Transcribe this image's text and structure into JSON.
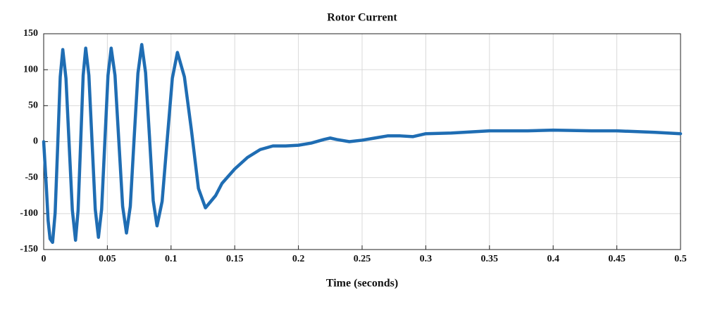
{
  "chart_data": {
    "type": "line",
    "title": "Rotor Current",
    "xlabel": "Time (seconds)",
    "color": "#1f6db3",
    "grid": true,
    "xlim": [
      0,
      0.5
    ],
    "ylim": [
      -150,
      150
    ],
    "xticks": [
      0,
      0.05,
      0.1,
      0.15,
      0.2,
      0.25,
      0.3,
      0.35,
      0.4,
      0.45,
      0.5
    ],
    "yticks": [
      -150,
      -100,
      -50,
      0,
      50,
      100,
      150
    ],
    "x": [
      0,
      0.002,
      0.0035,
      0.005,
      0.007,
      0.009,
      0.011,
      0.013,
      0.015,
      0.0175,
      0.02,
      0.0225,
      0.025,
      0.027,
      0.029,
      0.031,
      0.033,
      0.0355,
      0.038,
      0.0405,
      0.043,
      0.0455,
      0.048,
      0.0505,
      0.053,
      0.056,
      0.059,
      0.062,
      0.065,
      0.068,
      0.071,
      0.074,
      0.077,
      0.08,
      0.083,
      0.086,
      0.089,
      0.093,
      0.097,
      0.101,
      0.105,
      0.1105,
      0.116,
      0.1215,
      0.127,
      0.135,
      0.14,
      0.15,
      0.16,
      0.17,
      0.18,
      0.19,
      0.2,
      0.21,
      0.22,
      0.225,
      0.23,
      0.24,
      0.25,
      0.26,
      0.27,
      0.28,
      0.29,
      0.3,
      0.32,
      0.35,
      0.38,
      0.4,
      0.43,
      0.45,
      0.48,
      0.5
    ],
    "values": [
      0,
      -60,
      -110,
      -135,
      -140,
      -99,
      -6,
      90,
      128,
      88,
      -4,
      -95,
      -137,
      -96,
      -3,
      92,
      130,
      92,
      -1,
      -94,
      -133,
      -94,
      -1,
      92,
      130,
      92,
      1,
      -90,
      -127,
      -90,
      4,
      95,
      135,
      96,
      9,
      -82,
      -117,
      -83,
      3,
      88,
      124,
      90,
      16,
      -65,
      -92,
      -75,
      -58,
      -38,
      -22,
      -11,
      -6,
      -6,
      -5,
      -2,
      3,
      5,
      3,
      0,
      2,
      5,
      8,
      8,
      7,
      11,
      12,
      15,
      15,
      16,
      15,
      15,
      13,
      11
    ]
  }
}
